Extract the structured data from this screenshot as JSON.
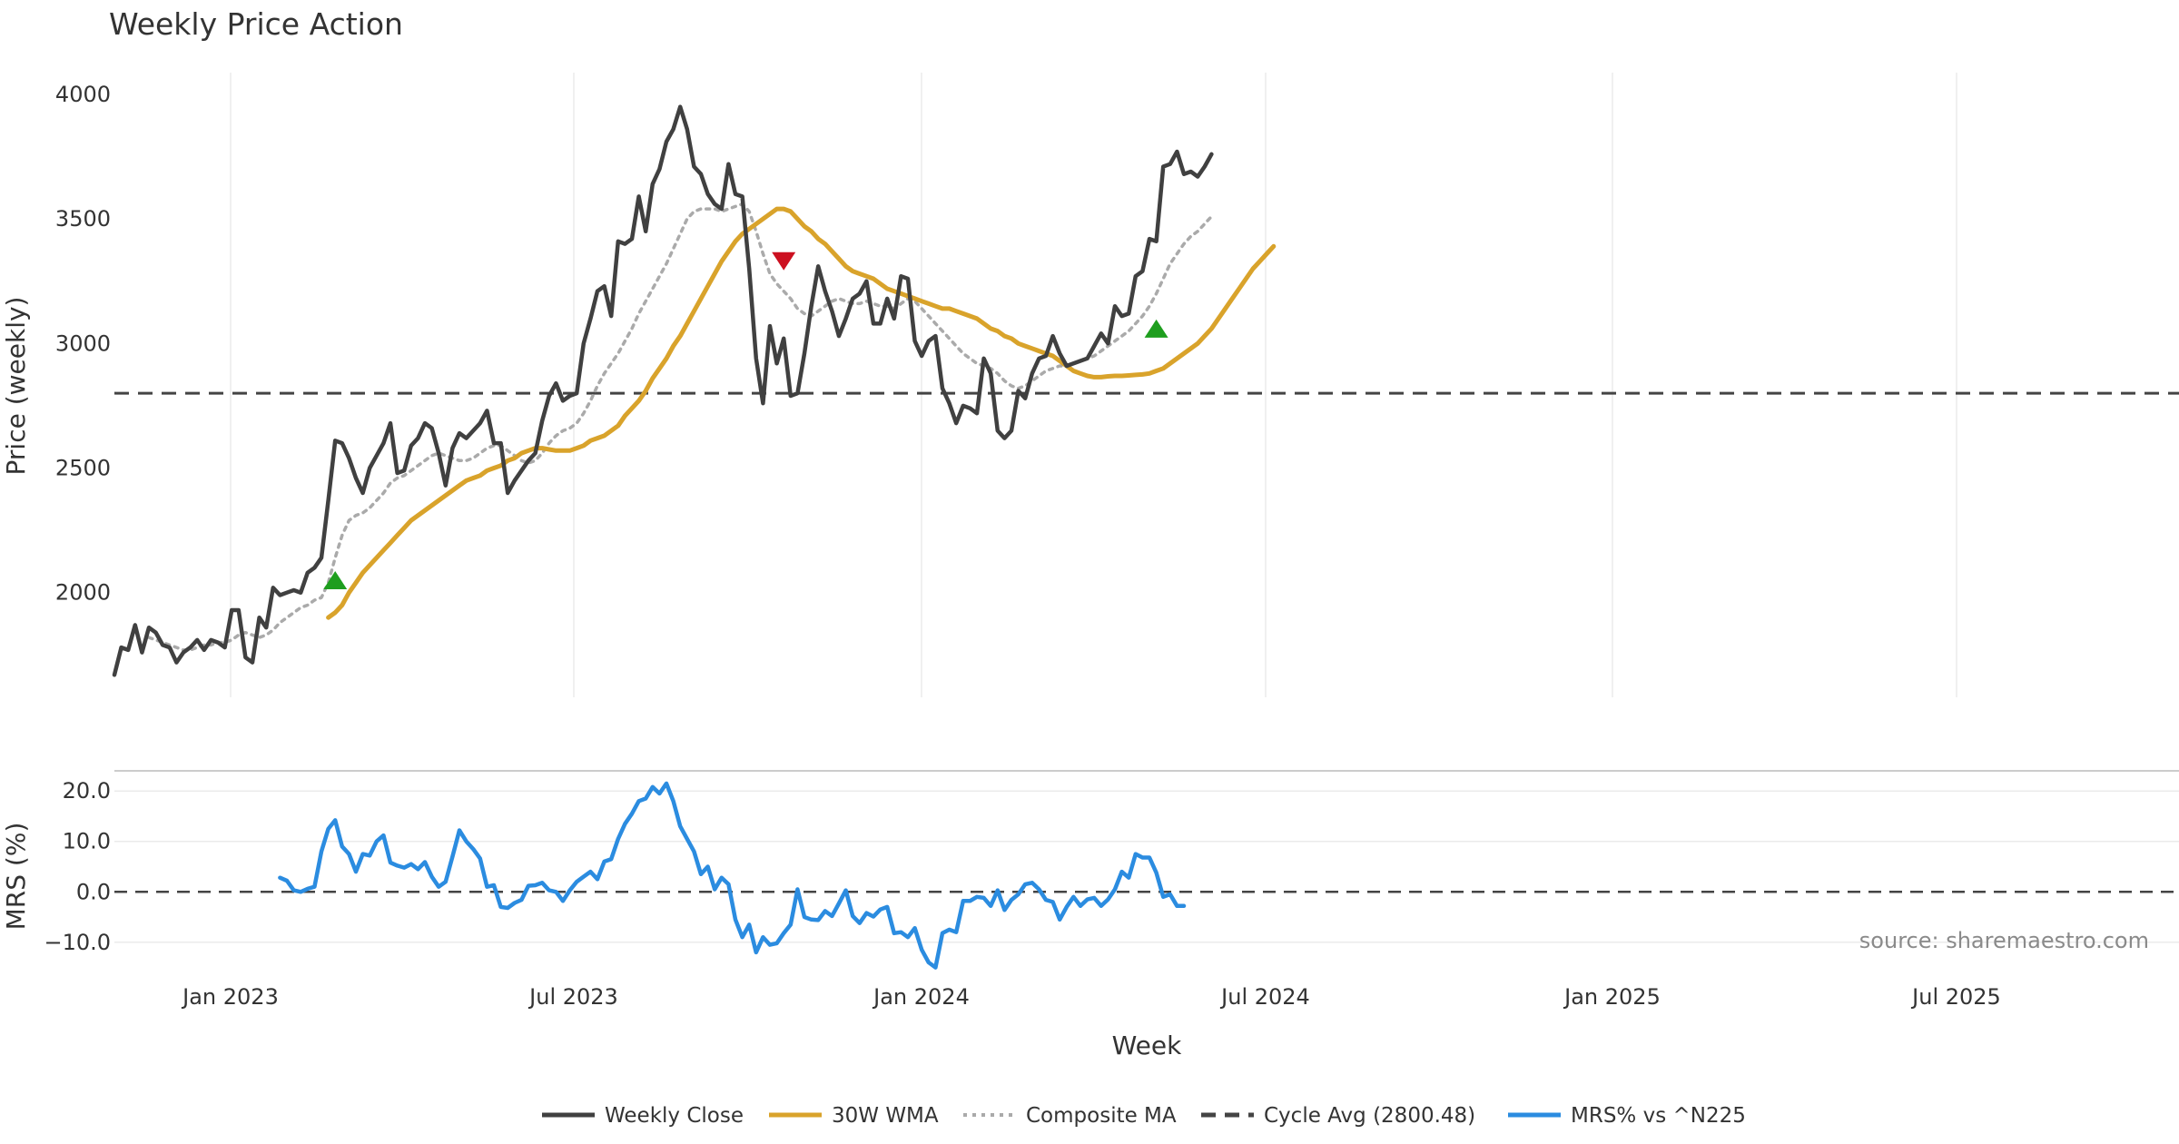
{
  "chart_data": {
    "type": "line",
    "title": "Weekly Price Action",
    "xlabel": "Week",
    "x_ticks": [
      "Jan 2023",
      "Jul 2023",
      "Jan 2024",
      "Jul 2024",
      "Jan 2025",
      "Jul 2025"
    ],
    "source": "source: sharemaestro.com",
    "price_panel": {
      "ylabel": "Price (weekly)",
      "ylim": [
        1580,
        4160
      ],
      "y_ticks": [
        "2000",
        "2500",
        "3000",
        "3500",
        "4000"
      ],
      "grid": "vertical",
      "cycle_avg": 2800.48,
      "series": [
        {
          "name": "Weekly Close",
          "color": "#404040",
          "style": "solid",
          "values": [
            1670,
            1780,
            1770,
            1870,
            1760,
            1860,
            1840,
            1790,
            1780,
            1720,
            1760,
            1780,
            1810,
            1770,
            1810,
            1800,
            1780,
            1930,
            1930,
            1740,
            1720,
            1900,
            1860,
            2020,
            1990,
            2000,
            2010,
            2000,
            2080,
            2100,
            2140,
            2370,
            2610,
            2600,
            2540,
            2460,
            2400,
            2500,
            2550,
            2600,
            2680,
            2480,
            2490,
            2590,
            2620,
            2680,
            2660,
            2560,
            2430,
            2580,
            2640,
            2620,
            2650,
            2680,
            2730,
            2600,
            2600,
            2400,
            2450,
            2490,
            2530,
            2560,
            2690,
            2790,
            2840,
            2770,
            2790,
            2800,
            3000,
            3100,
            3210,
            3230,
            3110,
            3410,
            3400,
            3420,
            3590,
            3450,
            3640,
            3700,
            3810,
            3860,
            3950,
            3860,
            3710,
            3680,
            3600,
            3560,
            3540,
            3720,
            3600,
            3590,
            3300,
            2940,
            2760,
            3070,
            2920,
            3020,
            2790,
            2800,
            2960,
            3150,
            3310,
            3210,
            3130,
            3030,
            3100,
            3180,
            3200,
            3250,
            3080,
            3080,
            3180,
            3100,
            3270,
            3260,
            3010,
            2950,
            3010,
            3030,
            2820,
            2760,
            2680,
            2750,
            2740,
            2720,
            2940,
            2880,
            2650,
            2620,
            2650,
            2810,
            2780,
            2880,
            2940,
            2950,
            3030,
            2960,
            2910,
            2920,
            2930,
            2940,
            2990,
            3040,
            3000,
            3150,
            3110,
            3120,
            3270,
            3290,
            3420,
            3410,
            3710,
            3720,
            3770,
            3680,
            3690,
            3670,
            3710,
            3760
          ]
        },
        {
          "name": "30W WMA",
          "color": "#d9a32b",
          "style": "solid",
          "start_index": 31,
          "values": [
            1900,
            1920,
            1950,
            2000,
            2040,
            2080,
            2110,
            2140,
            2170,
            2200,
            2230,
            2260,
            2290,
            2310,
            2330,
            2350,
            2370,
            2390,
            2410,
            2430,
            2450,
            2460,
            2470,
            2490,
            2500,
            2510,
            2530,
            2540,
            2560,
            2570,
            2580,
            2580,
            2575,
            2570,
            2570,
            2570,
            2580,
            2590,
            2610,
            2620,
            2630,
            2650,
            2670,
            2710,
            2740,
            2770,
            2810,
            2860,
            2900,
            2940,
            2990,
            3030,
            3080,
            3130,
            3180,
            3230,
            3280,
            3330,
            3370,
            3410,
            3440,
            3460,
            3480,
            3500,
            3520,
            3540,
            3540,
            3530,
            3500,
            3470,
            3450,
            3420,
            3400,
            3370,
            3340,
            3310,
            3290,
            3280,
            3270,
            3260,
            3240,
            3220,
            3210,
            3200,
            3190,
            3180,
            3170,
            3160,
            3150,
            3140,
            3140,
            3130,
            3120,
            3110,
            3100,
            3080,
            3060,
            3050,
            3030,
            3020,
            3000,
            2990,
            2980,
            2970,
            2960,
            2950,
            2930,
            2910,
            2890,
            2880,
            2870,
            2865,
            2865,
            2868,
            2870,
            2870,
            2872,
            2874,
            2876,
            2880,
            2890,
            2900,
            2920,
            2940,
            2960,
            2980,
            3000,
            3030,
            3060,
            3100,
            3140,
            3180,
            3220,
            3260,
            3300,
            3330,
            3360,
            3390
          ]
        },
        {
          "name": "Composite MA",
          "color": "#aaaaaa",
          "style": "dotted",
          "values": [
            null,
            null,
            null,
            null,
            null,
            1820,
            1810,
            1800,
            1790,
            1780,
            1770,
            1770,
            1780,
            1790,
            1790,
            1800,
            1800,
            1810,
            1830,
            1840,
            1830,
            1820,
            1830,
            1850,
            1880,
            1900,
            1920,
            1940,
            1950,
            1970,
            1980,
            2040,
            2140,
            2230,
            2290,
            2310,
            2320,
            2340,
            2370,
            2400,
            2440,
            2460,
            2470,
            2490,
            2510,
            2530,
            2550,
            2560,
            2550,
            2540,
            2530,
            2530,
            2540,
            2560,
            2580,
            2590,
            2590,
            2570,
            2550,
            2530,
            2520,
            2530,
            2560,
            2600,
            2630,
            2650,
            2660,
            2680,
            2720,
            2770,
            2830,
            2880,
            2920,
            2960,
            3010,
            3060,
            3120,
            3170,
            3220,
            3270,
            3320,
            3380,
            3440,
            3500,
            3530,
            3540,
            3540,
            3540,
            3530,
            3540,
            3550,
            3560,
            3530,
            3450,
            3360,
            3280,
            3240,
            3210,
            3180,
            3140,
            3120,
            3110,
            3130,
            3150,
            3170,
            3180,
            3170,
            3160,
            3160,
            3170,
            3160,
            3150,
            3150,
            3140,
            3160,
            3180,
            3170,
            3140,
            3110,
            3080,
            3050,
            3020,
            2990,
            2960,
            2940,
            2920,
            2910,
            2900,
            2880,
            2850,
            2830,
            2820,
            2830,
            2850,
            2870,
            2890,
            2900,
            2910,
            2910,
            2920,
            2930,
            2940,
            2950,
            2970,
            2990,
            3010,
            3030,
            3050,
            3080,
            3110,
            3150,
            3200,
            3260,
            3320,
            3360,
            3400,
            3430,
            3450,
            3480,
            3510
          ]
        }
      ],
      "signals": [
        {
          "index": 32,
          "value": 2050,
          "type": "buy",
          "color": "#1e9e1e"
        },
        {
          "index": 97,
          "value": 3330,
          "type": "sell",
          "color": "#cc1020"
        },
        {
          "index": 151,
          "value": 3060,
          "type": "buy",
          "color": "#1e9e1e"
        }
      ]
    },
    "mrs_panel": {
      "ylabel": "MRS (%)",
      "ylim": [
        -14,
        24
      ],
      "y_ticks": [
        "20.0",
        "10.0",
        "0.0",
        "−10.0"
      ],
      "zero_line": 0,
      "series": [
        {
          "name": "MRS% vs ^N225",
          "color": "#2b8ce0",
          "style": "solid",
          "start_index": 24,
          "values": [
            2.8,
            2.2,
            0.3,
            0,
            0.6,
            1,
            8,
            12.5,
            14.2,
            9,
            7.5,
            4,
            7.5,
            7.2,
            10,
            11.2,
            5.8,
            5.2,
            4.8,
            5.5,
            4.5,
            5.9,
            3,
            1,
            2,
            7,
            12.2,
            10,
            8.5,
            6.6,
            1,
            1.3,
            -3,
            -3.2,
            -2.2,
            -1.6,
            1.2,
            1.3,
            1.8,
            0.3,
            0,
            -1.8,
            0.3,
            2,
            3,
            4,
            2.5,
            6,
            6.5,
            10.5,
            13.5,
            15.5,
            18,
            18.5,
            20.8,
            19.5,
            21.5,
            18,
            13,
            10.5,
            8,
            3.5,
            5,
            0.5,
            2.8,
            1.5,
            -5.5,
            -9,
            -6.5,
            -12,
            -9,
            -10.5,
            -10.2,
            -8.2,
            -6.5,
            0.5,
            -5,
            -5.5,
            -5.6,
            -3.8,
            -4.8,
            -2.3,
            0.3,
            -4.8,
            -6.2,
            -4.2,
            -4.9,
            -3.5,
            -3,
            -8.2,
            -8,
            -9,
            -7.2,
            -11.5,
            -14,
            -15,
            -8.2,
            -7.5,
            -8,
            -1.8,
            -1.8,
            -1,
            -1.2,
            -2.8,
            0.3,
            -3.6,
            -1.6,
            -0.5,
            1.5,
            1.8,
            0.5,
            -1.6,
            -2,
            -5.5,
            -3,
            -1,
            -2.8,
            -1.5,
            -1.2,
            -2.8,
            -1.5,
            0.5,
            4,
            2.8,
            7.5,
            6.8,
            6.8,
            3.8,
            -1,
            -0.5,
            -2.8,
            -2.8
          ]
        }
      ]
    },
    "legend": {
      "placement": "bottom",
      "items": [
        {
          "label": "Weekly Close",
          "color": "#404040",
          "style": "solid"
        },
        {
          "label": "30W WMA",
          "color": "#d9a32b",
          "style": "solid"
        },
        {
          "label": "Composite MA",
          "color": "#aaaaaa",
          "style": "dotted"
        },
        {
          "label": "Cycle Avg (2800.48)",
          "color": "#444444",
          "style": "dashed"
        },
        {
          "label": "MRS% vs ^N225",
          "color": "#2b8ce0",
          "style": "solid"
        }
      ]
    }
  }
}
